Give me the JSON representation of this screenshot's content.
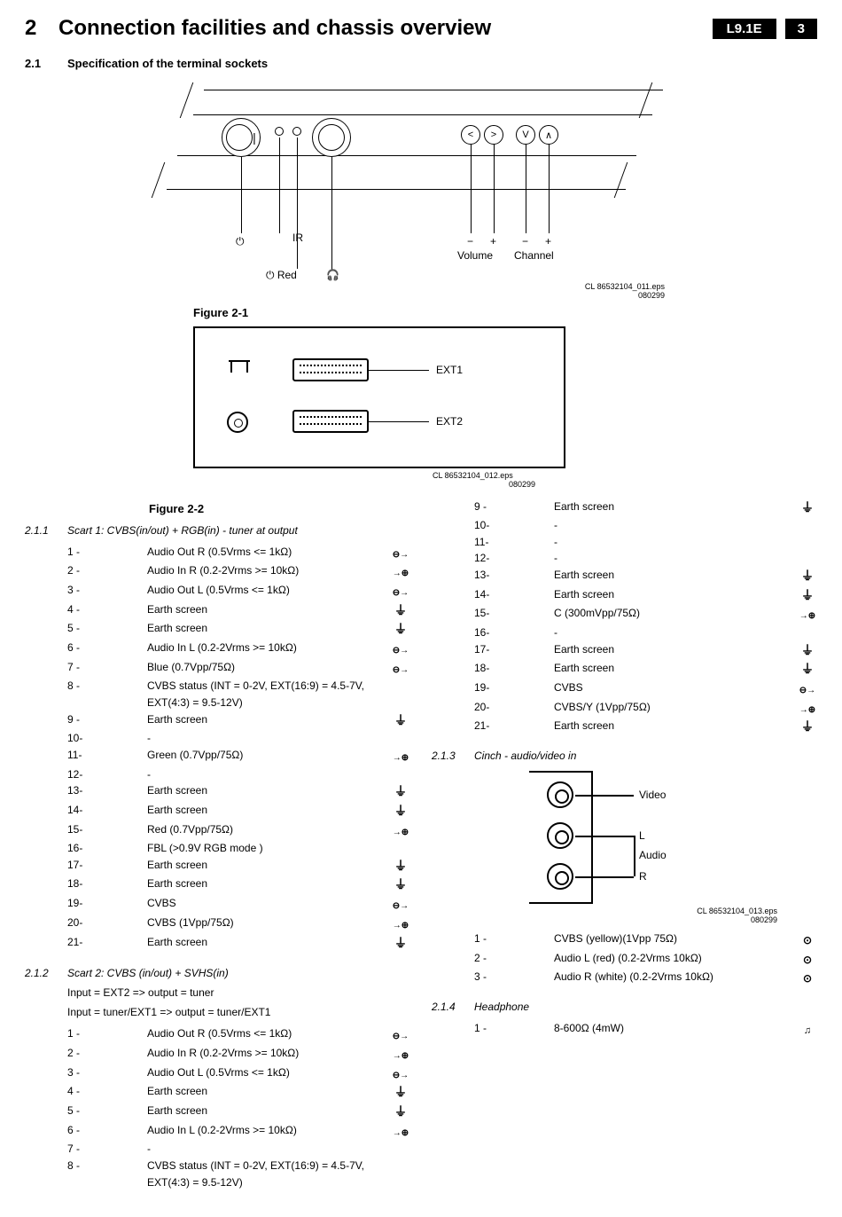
{
  "header": {
    "chapter_num": "2",
    "chapter_title": "Connection facilities and chassis overview",
    "badge_model": "L9.1E",
    "badge_page": "3"
  },
  "section": {
    "num": "2.1",
    "title": "Specification of the terminal sockets"
  },
  "fig21": {
    "title": "Figure 2-1",
    "labels": {
      "power": "⏻",
      "ir": "IR",
      "red": "⏻ Red",
      "hp": "🎧",
      "minus": "−",
      "plus": "+",
      "volume": "Volume",
      "channel": "Channel"
    },
    "caption_l1": "CL 86532104_011.eps",
    "caption_l2": "080299"
  },
  "fig22": {
    "title": "Figure 2-2",
    "ext1": "EXT1",
    "ext2": "EXT2",
    "caption_l1": "CL 86532104_012.eps",
    "caption_l2": "080299"
  },
  "sub211": {
    "num": "2.1.1",
    "title": "Scart 1: CVBS(in/out) + RGB(in) - tuner at output",
    "pins": [
      {
        "n": "1 -",
        "d": "Audio Out R (0.5Vrms <= 1kΩ)",
        "s": "out"
      },
      {
        "n": "2 -",
        "d": "Audio In R (0.2-2Vrms >= 10kΩ)",
        "s": "inp"
      },
      {
        "n": "3 -",
        "d": "Audio Out L (0.5Vrms <= 1kΩ)",
        "s": "out"
      },
      {
        "n": "4 -",
        "d": "Earth screen",
        "s": "gnd"
      },
      {
        "n": "5 -",
        "d": "Earth screen",
        "s": "gnd"
      },
      {
        "n": "6 -",
        "d": "Audio In L (0.2-2Vrms >= 10kΩ)",
        "s": "out"
      },
      {
        "n": "7 -",
        "d": "Blue (0.7Vpp/75Ω)",
        "s": "out"
      },
      {
        "n": "8 -",
        "d": "CVBS status (INT = 0-2V,  EXT(16:9) = 4.5-7V, EXT(4:3)  = 9.5-12V)",
        "s": ""
      },
      {
        "n": "9 -",
        "d": "Earth screen",
        "s": "gnd"
      },
      {
        "n": "10-",
        "d": "-",
        "s": ""
      },
      {
        "n": "11-",
        "d": "Green (0.7Vpp/75Ω)",
        "s": "inp"
      },
      {
        "n": "12-",
        "d": "-",
        "s": ""
      },
      {
        "n": "13-",
        "d": "Earth screen",
        "s": "gnd"
      },
      {
        "n": "14-",
        "d": "Earth screen",
        "s": "gnd"
      },
      {
        "n": "15-",
        "d": "Red (0.7Vpp/75Ω)",
        "s": "inp"
      },
      {
        "n": "16-",
        "d": "FBL (>0.9V RGB mode )",
        "s": ""
      },
      {
        "n": "17-",
        "d": "Earth screen",
        "s": "gnd"
      },
      {
        "n": "18-",
        "d": "Earth screen",
        "s": "gnd"
      },
      {
        "n": "19-",
        "d": "CVBS",
        "s": "out"
      },
      {
        "n": "20-",
        "d": "CVBS (1Vpp/75Ω)",
        "s": "inp"
      },
      {
        "n": "21-",
        "d": "Earth screen",
        "s": "gnd"
      }
    ]
  },
  "sub212": {
    "num": "2.1.2",
    "title": "Scart 2: CVBS (in/out) + SVHS(in)",
    "note1": "Input = EXT2 => output = tuner",
    "note2": "Input = tuner/EXT1 => output = tuner/EXT1",
    "pins": [
      {
        "n": "1 -",
        "d": "Audio Out R (0.5Vrms <= 1kΩ)",
        "s": "out"
      },
      {
        "n": "2 -",
        "d": "Audio In R (0.2-2Vrms >= 10kΩ)",
        "s": "inp"
      },
      {
        "n": "3 -",
        "d": "Audio Out L (0.5Vrms <= 1kΩ)",
        "s": "out"
      },
      {
        "n": "4 -",
        "d": "Earth screen",
        "s": "gnd"
      },
      {
        "n": "5 -",
        "d": "Earth screen",
        "s": "gnd"
      },
      {
        "n": "6 -",
        "d": "Audio In L (0.2-2Vrms >= 10kΩ)",
        "s": "inp"
      },
      {
        "n": "7 -",
        "d": "-",
        "s": ""
      },
      {
        "n": "8 -",
        "d": "CVBS status (INT = 0-2V,  EXT(16:9) = 4.5-7V,  EXT(4:3) = 9.5-12V)",
        "s": ""
      }
    ]
  },
  "sub212b": {
    "pins": [
      {
        "n": "9 -",
        "d": "Earth screen",
        "s": "gnd"
      },
      {
        "n": "10-",
        "d": "-",
        "s": ""
      },
      {
        "n": "11-",
        "d": "-",
        "s": ""
      },
      {
        "n": "12-",
        "d": "-",
        "s": ""
      },
      {
        "n": "13-",
        "d": "Earth screen",
        "s": "gnd"
      },
      {
        "n": "14-",
        "d": "Earth screen",
        "s": "gnd"
      },
      {
        "n": "15-",
        "d": "C (300mVpp/75Ω)",
        "s": "inp"
      },
      {
        "n": "16-",
        "d": "-",
        "s": ""
      },
      {
        "n": "17-",
        "d": "Earth screen",
        "s": "gnd"
      },
      {
        "n": "18-",
        "d": "Earth screen",
        "s": "gnd"
      },
      {
        "n": "19-",
        "d": "CVBS",
        "s": "out"
      },
      {
        "n": "20-",
        "d": "CVBS/Y (1Vpp/75Ω)",
        "s": "inp"
      },
      {
        "n": "21-",
        "d": "Earth screen",
        "s": "gnd"
      }
    ]
  },
  "sub213": {
    "num": "2.1.3",
    "title": "Cinch - audio/video in",
    "fig": {
      "video": "Video",
      "l": "L",
      "audio": "Audio",
      "r": "R",
      "caption_l1": "CL 86532104_013.eps",
      "caption_l2": "080299"
    },
    "pins": [
      {
        "n": "1 -",
        "d": "CVBS (yellow)(1Vpp 75Ω)",
        "s": "io"
      },
      {
        "n": "2 -",
        "d": "Audio L (red) (0.2-2Vrms 10kΩ)",
        "s": "io"
      },
      {
        "n": "3 -",
        "d": "Audio R (white) (0.2-2Vrms 10kΩ)",
        "s": "io"
      }
    ]
  },
  "sub214": {
    "num": "2.1.4",
    "title": "Headphone",
    "pins": [
      {
        "n": "1 -",
        "d": "8-600Ω (4mW)",
        "s": "hp"
      }
    ]
  }
}
